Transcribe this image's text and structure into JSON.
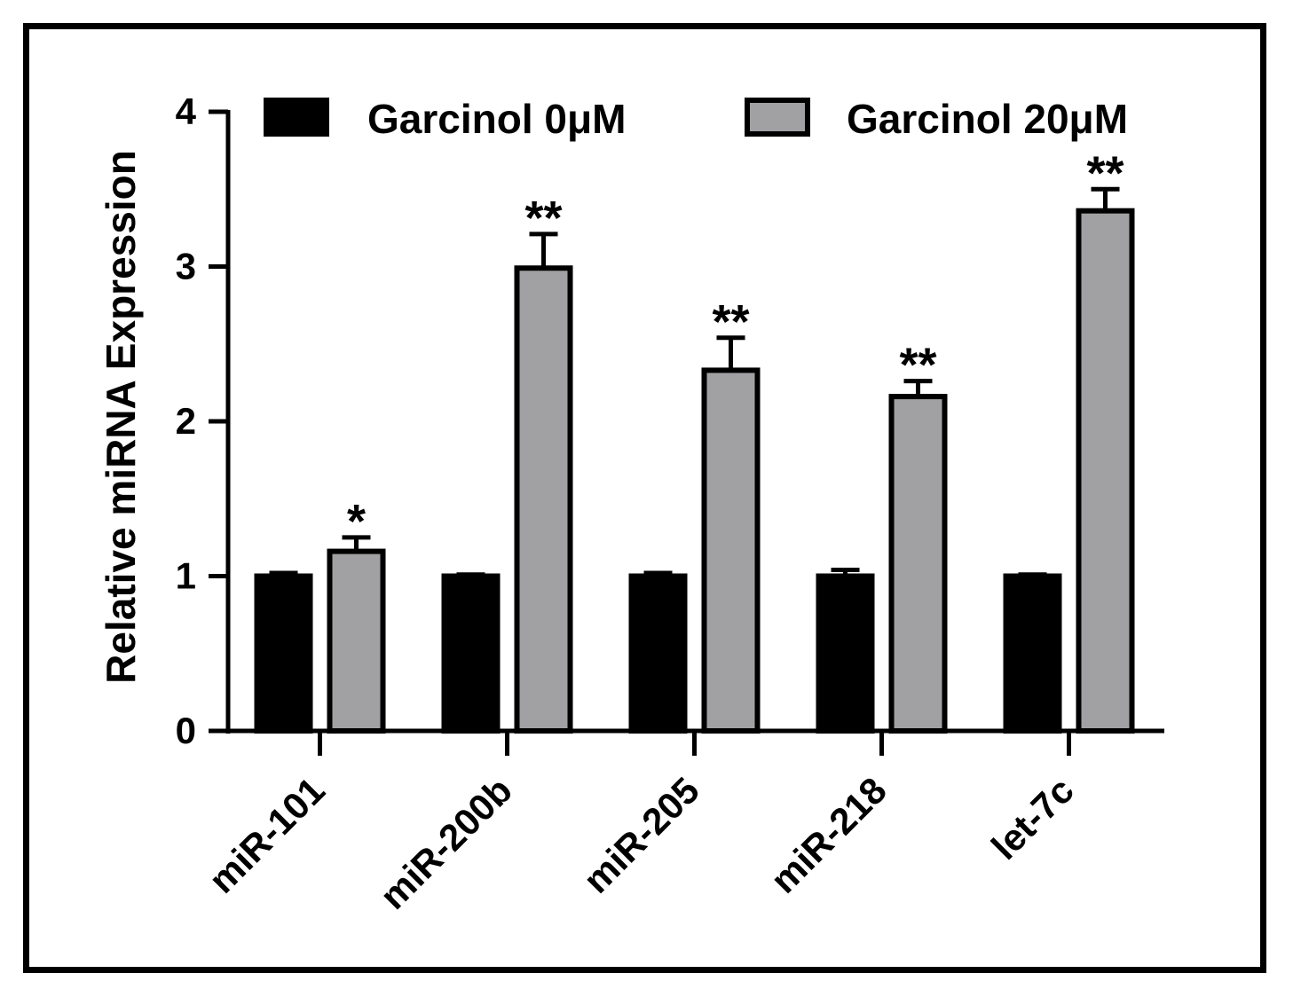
{
  "chart_data": {
    "type": "bar",
    "title": "",
    "xlabel": "",
    "ylabel": "Relative miRNA Expression",
    "ylim": [
      0,
      4
    ],
    "yticks": [
      "0",
      "1",
      "2",
      "3",
      "4"
    ],
    "legend_position": "top",
    "categories": [
      "miR-101",
      "miR-200b",
      "miR-205",
      "miR-218",
      "let-7c"
    ],
    "series": [
      {
        "name": "Garcinol 0μM",
        "color": "#000000",
        "values": [
          1.0,
          1.0,
          1.0,
          1.0,
          1.0
        ],
        "errors": [
          0.02,
          0.01,
          0.02,
          0.04,
          0.01
        ],
        "significance": [
          "",
          "",
          "",
          "",
          ""
        ]
      },
      {
        "name": "Garcinol 20μM",
        "color": "#a1a1a3",
        "values": [
          1.16,
          2.99,
          2.33,
          2.16,
          3.36
        ],
        "errors": [
          0.09,
          0.22,
          0.21,
          0.1,
          0.14
        ],
        "significance": [
          "*",
          "**",
          "**",
          "**",
          "**"
        ]
      }
    ]
  }
}
